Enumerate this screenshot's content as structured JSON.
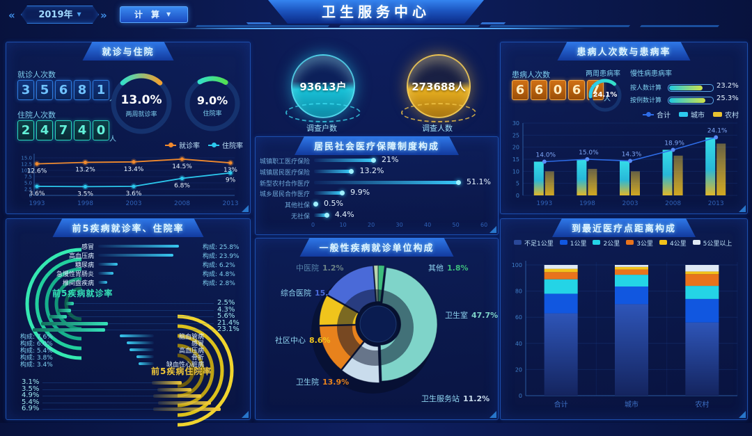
{
  "header": {
    "year_selector": {
      "value": "2019年"
    },
    "calc_button": {
      "label": "计 算"
    },
    "title": "卫生服务中心"
  },
  "panels": {
    "visits": {
      "title": "就诊与住院",
      "outpatient": {
        "label": "就诊人次数",
        "value": "35681",
        "unit": "人"
      },
      "inpatient": {
        "label": "住院人次数",
        "value": "24740",
        "unit": "人"
      },
      "gauges": [
        {
          "value": "13.0%",
          "label": "两周就诊率"
        },
        {
          "value": "9.0%",
          "label": "住院率"
        }
      ],
      "legend": [
        {
          "name": "就诊率",
          "color": "#f08a2e",
          "shape": "line"
        },
        {
          "name": "住院率",
          "color": "#2cc9ee",
          "shape": "line"
        }
      ]
    },
    "survey": {
      "households": {
        "value": "93613户",
        "label": "调查户数"
      },
      "persons": {
        "value": "273688人",
        "label": "调查人数"
      }
    },
    "illness": {
      "title": "患病人次数与患病率",
      "count": {
        "label": "患病人次数",
        "value": "66067",
        "unit": "人"
      },
      "two_week": {
        "label": "两周患病率",
        "value": "24.1%",
        "pct": 24.1
      },
      "chronic": {
        "label": "慢性病患病率",
        "rows": [
          {
            "label": "按人数计算",
            "value": "23.2%",
            "pct": 23.2
          },
          {
            "label": "按例数计算",
            "value": "25.3%",
            "pct": 25.3
          }
        ]
      },
      "legend": [
        {
          "name": "合计",
          "color": "#2e6de8",
          "shape": "line"
        },
        {
          "name": "城市",
          "color": "#2cc9ee",
          "shape": "rect"
        },
        {
          "name": "农村",
          "color": "#e8c231",
          "shape": "rect"
        }
      ]
    },
    "insurance": {
      "title": "居民社会医疗保障制度构成"
    },
    "disease": {
      "title": "前5疾病就诊率、住院率",
      "top_label": "前5疾病就诊率",
      "bottom_label": "前5疾病住院率"
    },
    "pie": {
      "title": "一般性疾病就诊单位构成"
    },
    "distance": {
      "title": "到最近医疗点距离构成"
    }
  },
  "chart_data": [
    {
      "id": "visits_trend",
      "type": "line",
      "categories": [
        "1993",
        "1998",
        "2003",
        "2008",
        "2013"
      ],
      "series": [
        {
          "name": "就诊率",
          "color": "#f08a2e",
          "values": [
            12.6,
            13.2,
            13.4,
            14.5,
            13
          ],
          "labels": [
            "12.6%",
            "13.2%",
            "13.4%",
            "14.5%",
            "13%"
          ]
        },
        {
          "name": "住院率",
          "color": "#2cc9ee",
          "values": [
            3.6,
            3.5,
            3.6,
            6.8,
            9
          ],
          "labels": [
            "3.6%",
            "3.5%",
            "3.6%",
            "6.8%",
            "9%"
          ]
        }
      ],
      "ylim": [
        0,
        15
      ],
      "yticks": [
        0,
        2.5,
        5.0,
        7.5,
        10.0,
        12.5,
        15.0
      ],
      "legend_position": "top-right",
      "grid": true
    },
    {
      "id": "morbidity",
      "type": "bar+line",
      "categories": [
        "1993",
        "1998",
        "2003",
        "2008",
        "2013"
      ],
      "series": [
        {
          "name": "合计",
          "kind": "line",
          "color": "#2e6de8",
          "values": [
            14.0,
            15.0,
            14.3,
            18.9,
            24.1
          ],
          "labels": [
            "14.0%",
            "15.0%",
            "14.3%",
            "18.9%",
            "24.1%"
          ]
        },
        {
          "name": "城市",
          "kind": "bar",
          "color": "#2cc9ee",
          "values": [
            14,
            15,
            14.3,
            18.9,
            24
          ]
        },
        {
          "name": "农村",
          "kind": "bar",
          "color": "#e8c231",
          "values": [
            10,
            11,
            10,
            16.5,
            21.5
          ]
        }
      ],
      "ylim": [
        0,
        30
      ],
      "yticks": [
        0,
        5,
        10,
        15,
        20,
        25,
        30
      ],
      "grid": true
    },
    {
      "id": "insurance",
      "type": "bar-horizontal",
      "categories": [
        "城镇职工医疗保险",
        "城镇居民医疗保险",
        "新型农村合作医疗",
        "城乡居民合作医疗",
        "其他社保",
        "无社保"
      ],
      "values": [
        21,
        13.2,
        51.1,
        9.9,
        0.5,
        4.4
      ],
      "labels": [
        "21%",
        "13.2%",
        "51.1%",
        "9.9%",
        "0.5%",
        "4.4%"
      ],
      "xlim": [
        0,
        60
      ],
      "xticks": [
        0,
        10,
        20,
        30,
        40,
        50,
        60
      ]
    },
    {
      "id": "top5_outpatient",
      "type": "bar-horizontal",
      "group_label": "前5疾病就诊率",
      "categories": [
        "感冒",
        "高血压病",
        "糖尿病",
        "急慢性胃肠炎",
        "椎间盘疾病"
      ],
      "composition_pct": [
        25.8,
        23.9,
        6.2,
        4.8,
        2.8
      ],
      "composition_labels": [
        "构成: 25.8%",
        "构成: 23.9%",
        "构成: 6.2%",
        "构成: 4.8%",
        "构成: 2.8%"
      ],
      "rate_pct": [
        2.5,
        4.3,
        5.6,
        21.4,
        23.1
      ],
      "rate_labels": [
        "2.5%",
        "4.3%",
        "5.6%",
        "21.4%",
        "23.1%"
      ]
    },
    {
      "id": "top5_inpatient",
      "type": "bar-horizontal",
      "group_label": "前5疾病住院率",
      "categories": [
        "脑血管病",
        "感冒",
        "高血压病",
        "骨折",
        "缺血性心脏病"
      ],
      "composition_pct": [
        7.6,
        6.0,
        5.4,
        3.8,
        3.4
      ],
      "composition_labels": [
        "构成: 7.6%",
        "构成: 6.0%",
        "构成: 5.4%",
        "构成: 3.8%",
        "构成: 3.4%"
      ],
      "rate_pct": [
        3.1,
        3.5,
        4.9,
        5.4,
        6.9
      ],
      "rate_labels": [
        "3.1%",
        "3.5%",
        "4.9%",
        "5.4%",
        "6.9%"
      ]
    },
    {
      "id": "visit_units",
      "type": "pie",
      "title": "一般性疾病就诊单位构成",
      "slices": [
        {
          "name": "其他",
          "value": 1.8,
          "label": "1.8%",
          "color": "#3dbd7d"
        },
        {
          "name": "卫生室",
          "value": 47.7,
          "label": "47.7%",
          "color": "#7fd4c9"
        },
        {
          "name": "卫生服务站",
          "value": 11.2,
          "label": "11.2%",
          "color": "#c9dcec"
        },
        {
          "name": "卫生院",
          "value": 13.9,
          "label": "13.9%",
          "color": "#e8821c"
        },
        {
          "name": "社区中心",
          "value": 8.6,
          "label": "8.6%",
          "color": "#f0c41c"
        },
        {
          "name": "综合医院",
          "value": 15.6,
          "label": "15.6%",
          "color": "#4a6ad8"
        },
        {
          "name": "中医院",
          "value": 1.2,
          "label": "1.2%",
          "color": "#b9d6ae"
        }
      ]
    },
    {
      "id": "distance",
      "type": "stacked-bar",
      "categories": [
        "合计",
        "城市",
        "农村"
      ],
      "legend": [
        "不足1公里",
        "1公里",
        "2公里",
        "3公里",
        "4公里",
        "5公里以上"
      ],
      "colors": [
        "#2a4898",
        "#1157e0",
        "#24d4e6",
        "#e8731c",
        "#f2c21a",
        "#dfe9f4"
      ],
      "series": [
        {
          "name": "不足1公里",
          "values": [
            63,
            70,
            56
          ]
        },
        {
          "name": "1公里",
          "values": [
            15,
            13.5,
            18
          ]
        },
        {
          "name": "2公里",
          "values": [
            11,
            9,
            10
          ]
        },
        {
          "name": "3公里",
          "values": [
            5.5,
            4,
            9
          ]
        },
        {
          "name": "4公里",
          "values": [
            2.5,
            2,
            2
          ]
        },
        {
          "name": "5公里以上",
          "values": [
            3,
            1.5,
            5
          ]
        }
      ],
      "ylim": [
        0,
        100
      ],
      "yticks": [
        0,
        20,
        40,
        60,
        80,
        100
      ]
    }
  ]
}
